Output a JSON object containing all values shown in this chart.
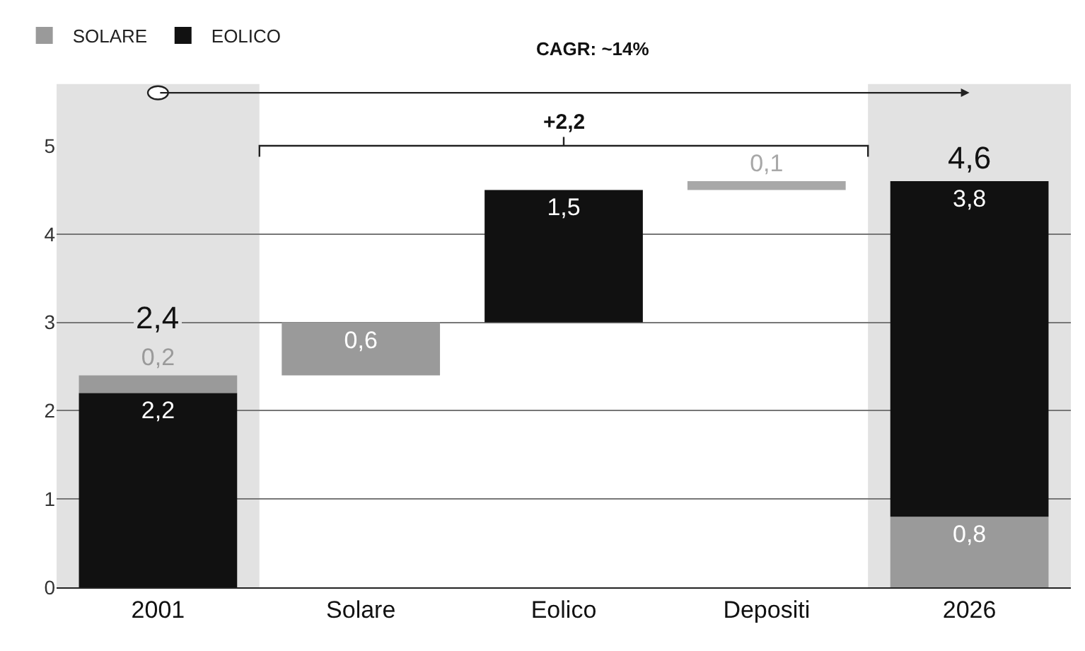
{
  "chart_data": {
    "type": "bar",
    "categories": [
      "2001",
      "Solare",
      "Eolico",
      "Depositi",
      "2026"
    ],
    "series": [
      {
        "name": "SOLARE",
        "color": "#9a9a9a",
        "values": [
          0.2,
          0.6,
          null,
          null,
          0.8
        ],
        "base": [
          2.2,
          2.4,
          null,
          null,
          0
        ],
        "value_labels": [
          "0,2",
          "0,6",
          null,
          null,
          "0,8"
        ]
      },
      {
        "name": "EOLICO",
        "color": "#111111",
        "values": [
          2.2,
          null,
          1.5,
          null,
          3.8
        ],
        "base": [
          0,
          null,
          3.0,
          null,
          0.8
        ],
        "value_labels": [
          "2,2",
          null,
          "1,5",
          null,
          "3,8"
        ]
      },
      {
        "color": "#a8a8a8",
        "values": [
          null,
          null,
          null,
          0.1,
          null
        ],
        "base": [
          null,
          null,
          null,
          4.5,
          null
        ],
        "value_labels": [
          null,
          null,
          null,
          "0,1",
          null
        ]
      }
    ],
    "totals": [
      "2,4",
      null,
      null,
      null,
      "4,6"
    ],
    "annotations": [
      "CAGR: ~14%",
      "+2,2"
    ],
    "bands": [
      {
        "axis": "x",
        "from": "2001",
        "to": "2001",
        "color": "#e2e2e2"
      },
      {
        "axis": "x",
        "from": "2026",
        "to": "2026",
        "color": "#e2e2e2"
      }
    ],
    "ylim": [
      0,
      5
    ],
    "yticks": [
      0,
      1,
      2,
      3,
      4,
      5
    ],
    "grid": "y",
    "legend": "top left"
  }
}
